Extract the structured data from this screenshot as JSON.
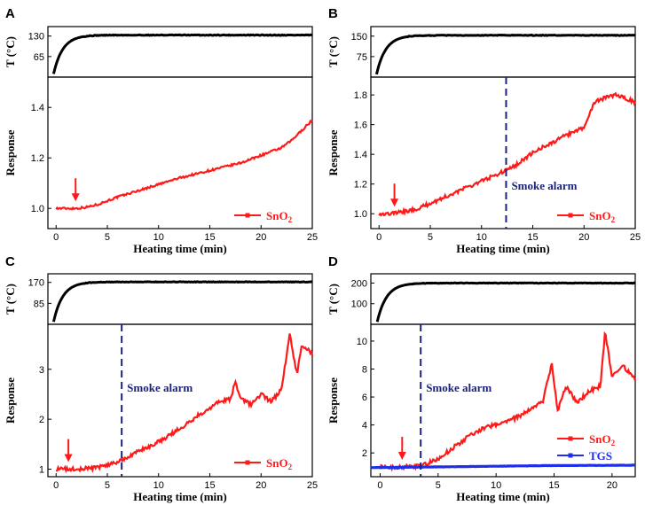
{
  "figure_colors": {
    "temperature": "#000000",
    "sno2": "#ff1a1a",
    "tgs": "#1f2ee8",
    "alarm": "#1a237e",
    "arrow": "#ff1a1a"
  },
  "chart_data": [
    {
      "panel_label": "A",
      "type": "line",
      "xlabel": "Heating time (min)",
      "xlim": [
        -0.8,
        25
      ],
      "xticks": [
        0,
        5,
        10,
        15,
        20,
        25
      ],
      "temperature": {
        "ylabel": "T (°C)",
        "ylim": [
          0,
          160
        ],
        "yticks": [
          65,
          130
        ],
        "plateau": 133,
        "start": 10,
        "tau": 0.9
      },
      "response": {
        "ylabel": "Response",
        "ylim": [
          0.92,
          1.52
        ],
        "yticks": [
          1.0,
          1.2,
          1.4
        ],
        "series": [
          {
            "name": "SnO2",
            "color": "#ff1a1a",
            "noise": 0.004,
            "points": [
              [
                0,
                1.0
              ],
              [
                1,
                1.0
              ],
              [
                2,
                1.0
              ],
              [
                3,
                1.005
              ],
              [
                4,
                1.015
              ],
              [
                5,
                1.03
              ],
              [
                6,
                1.045
              ],
              [
                8,
                1.07
              ],
              [
                10,
                1.095
              ],
              [
                12,
                1.12
              ],
              [
                14,
                1.14
              ],
              [
                16,
                1.16
              ],
              [
                18,
                1.18
              ],
              [
                20,
                1.21
              ],
              [
                22,
                1.24
              ],
              [
                23,
                1.27
              ],
              [
                24,
                1.31
              ],
              [
                25,
                1.35
              ]
            ]
          }
        ],
        "arrow_x": 1.9,
        "alarm_x": null,
        "alarm_label": "",
        "legend": [
          {
            "label": "SnO",
            "sub": "2",
            "color": "#ff1a1a"
          }
        ]
      }
    },
    {
      "panel_label": "B",
      "type": "line",
      "xlabel": "Heating time (min)",
      "xlim": [
        -0.8,
        25
      ],
      "xticks": [
        0,
        5,
        10,
        15,
        20,
        25
      ],
      "temperature": {
        "ylabel": "T (°C)",
        "ylim": [
          0,
          185
        ],
        "yticks": [
          75,
          150
        ],
        "plateau": 153,
        "start": 10,
        "tau": 0.9
      },
      "response": {
        "ylabel": "Response",
        "ylim": [
          0.9,
          1.92
        ],
        "yticks": [
          1.0,
          1.2,
          1.4,
          1.6,
          1.8
        ],
        "series": [
          {
            "name": "SnO2",
            "color": "#ff1a1a",
            "noise": 0.012,
            "points": [
              [
                0,
                1.0
              ],
              [
                1,
                1.0
              ],
              [
                2,
                1.01
              ],
              [
                3,
                1.02
              ],
              [
                4,
                1.04
              ],
              [
                5,
                1.07
              ],
              [
                6,
                1.1
              ],
              [
                8,
                1.16
              ],
              [
                10,
                1.22
              ],
              [
                12,
                1.28
              ],
              [
                13,
                1.31
              ],
              [
                14,
                1.36
              ],
              [
                15,
                1.41
              ],
              [
                16,
                1.45
              ],
              [
                17,
                1.48
              ],
              [
                18,
                1.52
              ],
              [
                19,
                1.55
              ],
              [
                20,
                1.58
              ],
              [
                21,
                1.75
              ],
              [
                22,
                1.78
              ],
              [
                23,
                1.8
              ],
              [
                24,
                1.78
              ],
              [
                25,
                1.75
              ]
            ]
          }
        ],
        "arrow_x": 1.5,
        "alarm_x": 12.4,
        "alarm_label": "Smoke alarm",
        "legend": [
          {
            "label": "SnO",
            "sub": "2",
            "color": "#ff1a1a"
          }
        ]
      }
    },
    {
      "panel_label": "C",
      "type": "line",
      "xlabel": "Heating time (min)",
      "xlim": [
        -0.8,
        25
      ],
      "xticks": [
        0,
        5,
        10,
        15,
        20,
        25
      ],
      "temperature": {
        "ylabel": "T (°C)",
        "ylim": [
          0,
          205
        ],
        "yticks": [
          85,
          170
        ],
        "plateau": 172,
        "start": 10,
        "tau": 0.9
      },
      "response": {
        "ylabel": "Response",
        "ylim": [
          0.85,
          3.9
        ],
        "yticks": [
          1,
          2,
          3
        ],
        "series": [
          {
            "name": "SnO2",
            "color": "#ff1a1a",
            "noise": 0.04,
            "points": [
              [
                0,
                1.0
              ],
              [
                2,
                1.0
              ],
              [
                4,
                1.03
              ],
              [
                5,
                1.08
              ],
              [
                6,
                1.15
              ],
              [
                7,
                1.25
              ],
              [
                8,
                1.35
              ],
              [
                10,
                1.55
              ],
              [
                12,
                1.8
              ],
              [
                14,
                2.1
              ],
              [
                16,
                2.35
              ],
              [
                17,
                2.4
              ],
              [
                17.5,
                2.75
              ],
              [
                18,
                2.4
              ],
              [
                19,
                2.3
              ],
              [
                20,
                2.5
              ],
              [
                21,
                2.35
              ],
              [
                22,
                2.6
              ],
              [
                22.8,
                3.7
              ],
              [
                23.5,
                2.9
              ],
              [
                24,
                3.5
              ],
              [
                25,
                3.3
              ]
            ]
          }
        ],
        "arrow_x": 1.2,
        "alarm_x": 6.4,
        "alarm_label": "Smoke alarm",
        "legend": [
          {
            "label": "SnO",
            "sub": "2",
            "color": "#ff1a1a"
          }
        ]
      }
    },
    {
      "panel_label": "D",
      "type": "line",
      "xlabel": "Heating time (min)",
      "xlim": [
        -0.8,
        22
      ],
      "xticks": [
        0,
        5,
        10,
        15,
        20
      ],
      "temperature": {
        "ylabel": "T (°C)",
        "ylim": [
          0,
          245
        ],
        "yticks": [
          100,
          200
        ],
        "plateau": 200,
        "start": 12,
        "tau": 0.8
      },
      "response": {
        "ylabel": "Response",
        "ylim": [
          0.3,
          11.2
        ],
        "yticks": [
          2,
          4,
          6,
          8,
          10
        ],
        "series": [
          {
            "name": "SnO2",
            "color": "#ff1a1a",
            "noise": 0.15,
            "points": [
              [
                0,
                1.0
              ],
              [
                2,
                1.0
              ],
              [
                3,
                1.05
              ],
              [
                4,
                1.2
              ],
              [
                5,
                1.6
              ],
              [
                6,
                2.2
              ],
              [
                7,
                2.8
              ],
              [
                8,
                3.4
              ],
              [
                9,
                3.8
              ],
              [
                10,
                4.0
              ],
              [
                11,
                4.3
              ],
              [
                12,
                4.6
              ],
              [
                13,
                5.2
              ],
              [
                14,
                5.6
              ],
              [
                14.8,
                8.4
              ],
              [
                15.3,
                5.0
              ],
              [
                16,
                6.8
              ],
              [
                17,
                5.6
              ],
              [
                18,
                6.4
              ],
              [
                19,
                6.8
              ],
              [
                19.4,
                10.7
              ],
              [
                20,
                7.4
              ],
              [
                21,
                8.2
              ],
              [
                22,
                7.2
              ]
            ]
          },
          {
            "name": "TGS",
            "color": "#1f2ee8",
            "noise": 0.01,
            "points": [
              [
                -0.8,
                0.95
              ],
              [
                5,
                1.0
              ],
              [
                10,
                1.05
              ],
              [
                15,
                1.1
              ],
              [
                22,
                1.12
              ]
            ]
          }
        ],
        "arrow_x": 1.9,
        "alarm_x": 3.5,
        "alarm_label": "Smoke alarm",
        "legend": [
          {
            "label": "SnO",
            "sub": "2",
            "color": "#ff1a1a"
          },
          {
            "label": "TGS",
            "sub": "",
            "color": "#1f2ee8"
          }
        ]
      }
    }
  ]
}
